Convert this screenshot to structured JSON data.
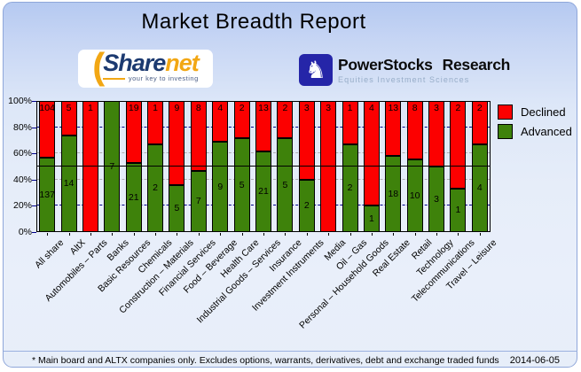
{
  "title": "Market Breadth Report",
  "logos": {
    "sharenet": {
      "name_part1": "Share",
      "name_part2": "net",
      "tagline": "your key to investing",
      "swoosh_icon": "orange-arc-icon",
      "brand_blue": "#1c3a70",
      "brand_orange": "#f2a714"
    },
    "powerstocks": {
      "title_word1": "PowerStocks",
      "title_word2": "Research",
      "subtitle": "Equities Investment Sciences",
      "knight_icon": "chess-knight-icon",
      "box_color": "#2525a8"
    }
  },
  "chart_data": {
    "type": "bar",
    "variant": "stacked-100-percent",
    "title": "Market Breadth Report",
    "categories": [
      "All share",
      "AltX",
      "Automobiles – Parts",
      "Banks",
      "Basic Resources",
      "Chemicals",
      "Construction – Materials",
      "Financial Services",
      "Food – Beverage",
      "Health Care",
      "Industrial Goods – Services",
      "Insurance",
      "Investment Instruments",
      "Media",
      "Oil – Gas",
      "Personal – Household Goods",
      "Real Estate",
      "Retail",
      "Technology",
      "Telecommunications",
      "Travel – Leisure"
    ],
    "series": [
      {
        "name": "Declined",
        "color": "#fc0000",
        "values": [
          104,
          5,
          1,
          0,
          19,
          1,
          9,
          8,
          4,
          2,
          13,
          2,
          3,
          3,
          1,
          4,
          13,
          8,
          3,
          2,
          2
        ]
      },
      {
        "name": "Advanced",
        "color": "#3e820b",
        "values": [
          137,
          14,
          0,
          7,
          21,
          2,
          5,
          7,
          9,
          5,
          21,
          5,
          2,
          0,
          2,
          1,
          18,
          10,
          3,
          1,
          4
        ]
      }
    ],
    "bar_labels_show_counts": true,
    "y_axis": {
      "min": 0,
      "max": 100,
      "tick_labels": [
        "0%",
        "20%",
        "40%",
        "60%",
        "80%",
        "100%"
      ],
      "unit": "percent"
    },
    "gridlines_pct": [
      20,
      40,
      60,
      80
    ],
    "gridline_navy_pct": [
      20,
      80
    ],
    "gridline_gray_pct": [
      40,
      60
    ],
    "reference_line_pct": 50,
    "legend": {
      "position": "top-right",
      "entries": [
        "Declined",
        "Advanced"
      ]
    }
  },
  "footer": {
    "note": "* Main board and ALTX companies only. Excludes options, warrants, derivatives, debt and exchange traded funds",
    "date": "2014-06-05"
  }
}
